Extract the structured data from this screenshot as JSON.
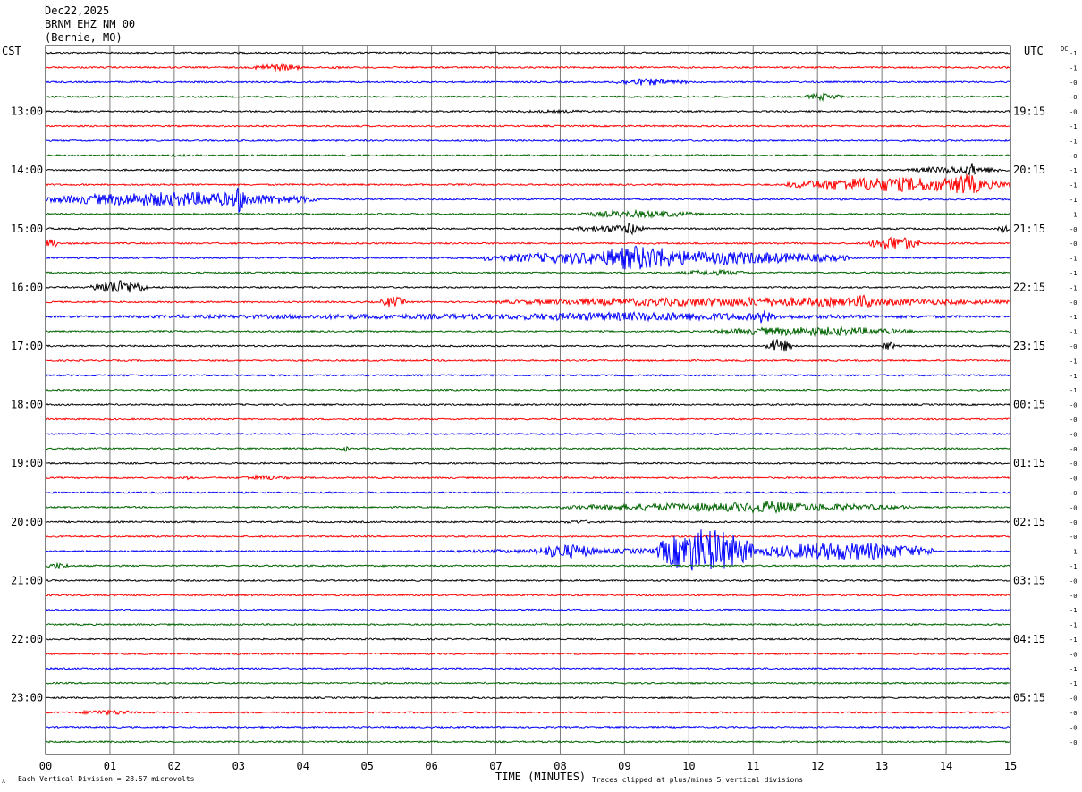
{
  "header": {
    "date": "Dec22,2025",
    "station": "BRNM EHZ NM 00",
    "location": "(Bernie, MO)",
    "left_zone": "CST",
    "right_zone": "UTC",
    "dc_label": "DC"
  },
  "footer": {
    "scale_text": "Each Vertical Division =   28.57 microvolts",
    "x_axis_label": "TIME (MINUTES)",
    "clip_text": "Traces clipped at plus/minus 5 vertical divisions",
    "corner_mark": "ᴧ"
  },
  "chart_data": {
    "type": "line",
    "title": "BRNM EHZ NM 00",
    "xlabel": "TIME (MINUTES)",
    "x_ticks": [
      "00",
      "01",
      "02",
      "03",
      "04",
      "05",
      "06",
      "07",
      "08",
      "09",
      "10",
      "11",
      "12",
      "13",
      "14",
      "15"
    ],
    "xlim": [
      0,
      15
    ],
    "rows": 48,
    "row_minutes": 15,
    "trace_colors": [
      "#000000",
      "#ff0000",
      "#0000ff",
      "#006400"
    ],
    "left_hour_labels": [
      {
        "row": 4,
        "text": "13:00"
      },
      {
        "row": 8,
        "text": "14:00"
      },
      {
        "row": 12,
        "text": "15:00"
      },
      {
        "row": 16,
        "text": "16:00"
      },
      {
        "row": 20,
        "text": "17:00"
      },
      {
        "row": 24,
        "text": "18:00"
      },
      {
        "row": 28,
        "text": "19:00"
      },
      {
        "row": 32,
        "text": "20:00"
      },
      {
        "row": 36,
        "text": "21:00"
      },
      {
        "row": 40,
        "text": "22:00"
      },
      {
        "row": 44,
        "text": "23:00"
      }
    ],
    "right_hour_labels": [
      {
        "row": 4,
        "text": "19:15"
      },
      {
        "row": 8,
        "text": "20:15"
      },
      {
        "row": 12,
        "text": "21:15"
      },
      {
        "row": 16,
        "text": "22:15"
      },
      {
        "row": 20,
        "text": "23:15"
      },
      {
        "row": 24,
        "text": "00:15"
      },
      {
        "row": 28,
        "text": "01:15"
      },
      {
        "row": 32,
        "text": "02:15"
      },
      {
        "row": 36,
        "text": "03:15"
      },
      {
        "row": 40,
        "text": "04:15"
      },
      {
        "row": 44,
        "text": "05:15"
      }
    ],
    "dc_offsets": [
      "-1",
      "-1",
      "-0",
      "-0",
      "-0",
      "-1",
      "-1",
      "-0",
      "-1",
      "-1",
      "-1",
      "-1",
      "-0",
      "-0",
      "-1",
      "-1",
      "-1",
      "-0",
      "-1",
      "-1",
      "-0",
      "-1",
      "-1",
      "-1",
      "-0",
      "-0",
      "-0",
      "-0",
      "-0",
      "-0",
      "-0",
      "-0",
      "-0",
      "-0",
      "-1",
      "-1",
      "-0",
      "-0",
      "-1",
      "-1",
      "-1",
      "-0",
      "-1",
      "-1",
      "-0",
      "-0",
      "-0",
      "-0"
    ],
    "events": [
      {
        "row": 1,
        "start": 3.2,
        "end": 4.0,
        "amp": 4
      },
      {
        "row": 1,
        "start": 4.4,
        "end": 4.6,
        "amp": 2
      },
      {
        "row": 2,
        "start": 8.8,
        "end": 10.0,
        "amp": 4
      },
      {
        "row": 3,
        "start": 11.8,
        "end": 12.4,
        "amp": 4
      },
      {
        "row": 4,
        "start": 6.8,
        "end": 9.0,
        "amp": 1.5
      },
      {
        "row": 7,
        "start": 1.8,
        "end": 2.3,
        "amp": 1.5
      },
      {
        "row": 8,
        "start": 13.4,
        "end": 15.0,
        "amp": 4
      },
      {
        "row": 8,
        "start": 14.3,
        "end": 14.5,
        "amp": 8
      },
      {
        "row": 9,
        "start": 11.5,
        "end": 15.0,
        "amp": 8
      },
      {
        "row": 9,
        "start": 14.0,
        "end": 14.6,
        "amp": 12
      },
      {
        "row": 10,
        "start": 0.0,
        "end": 4.2,
        "amp": 8
      },
      {
        "row": 10,
        "start": 2.9,
        "end": 3.1,
        "amp": 15
      },
      {
        "row": 11,
        "start": 8.2,
        "end": 10.2,
        "amp": 4
      },
      {
        "row": 12,
        "start": 8.2,
        "end": 9.4,
        "amp": 4
      },
      {
        "row": 12,
        "start": 9.0,
        "end": 9.2,
        "amp": 8
      },
      {
        "row": 12,
        "start": 14.8,
        "end": 15.0,
        "amp": 4
      },
      {
        "row": 13,
        "start": 0.0,
        "end": 0.2,
        "amp": 6
      },
      {
        "row": 13,
        "start": 12.8,
        "end": 13.6,
        "amp": 8
      },
      {
        "row": 14,
        "start": 6.8,
        "end": 12.5,
        "amp": 8
      },
      {
        "row": 14,
        "start": 8.5,
        "end": 10.0,
        "amp": 14
      },
      {
        "row": 15,
        "start": 9.8,
        "end": 11.0,
        "amp": 3
      },
      {
        "row": 16,
        "start": 0.7,
        "end": 1.6,
        "amp": 8
      },
      {
        "row": 17,
        "start": 5.2,
        "end": 5.6,
        "amp": 6
      },
      {
        "row": 17,
        "start": 7.0,
        "end": 15.0,
        "amp": 5
      },
      {
        "row": 17,
        "start": 12.5,
        "end": 12.9,
        "amp": 8
      },
      {
        "row": 18,
        "start": 0.0,
        "end": 15.0,
        "amp": 3
      },
      {
        "row": 18,
        "start": 6.5,
        "end": 12.0,
        "amp": 5
      },
      {
        "row": 18,
        "start": 11.0,
        "end": 11.3,
        "amp": 8
      },
      {
        "row": 19,
        "start": 10.3,
        "end": 13.5,
        "amp": 5
      },
      {
        "row": 20,
        "start": 11.2,
        "end": 11.6,
        "amp": 8
      },
      {
        "row": 20,
        "start": 13.0,
        "end": 13.2,
        "amp": 5
      },
      {
        "row": 27,
        "start": 4.6,
        "end": 4.7,
        "amp": 4
      },
      {
        "row": 29,
        "start": 2.1,
        "end": 2.3,
        "amp": 2
      },
      {
        "row": 29,
        "start": 3.0,
        "end": 3.8,
        "amp": 3
      },
      {
        "row": 31,
        "start": 8.0,
        "end": 13.5,
        "amp": 5
      },
      {
        "row": 31,
        "start": 10.7,
        "end": 11.8,
        "amp": 7
      },
      {
        "row": 32,
        "start": 8.0,
        "end": 8.6,
        "amp": 2
      },
      {
        "row": 34,
        "start": 6.0,
        "end": 14.0,
        "amp": 3
      },
      {
        "row": 34,
        "start": 7.6,
        "end": 8.6,
        "amp": 8
      },
      {
        "row": 34,
        "start": 9.5,
        "end": 11.0,
        "amp": 25
      },
      {
        "row": 34,
        "start": 11.0,
        "end": 13.8,
        "amp": 10
      },
      {
        "row": 35,
        "start": 0.0,
        "end": 0.4,
        "amp": 3
      },
      {
        "row": 45,
        "start": 0.5,
        "end": 1.4,
        "amp": 3
      }
    ]
  }
}
